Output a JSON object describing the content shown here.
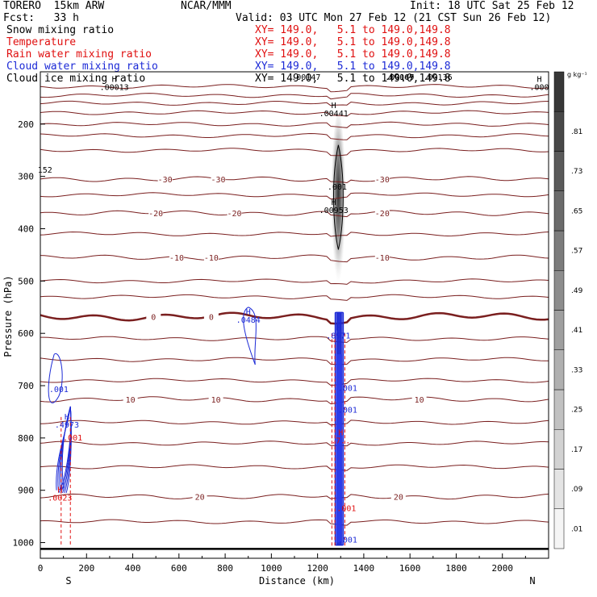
{
  "header": {
    "model": "TORERO  15km ARW",
    "org": "NCAR/MMM",
    "init": "Init: 18 UTC Sat 25 Feb 12",
    "fcst": "Fcst:   33 h",
    "valid": "Valid: 03 UTC Mon 27 Feb 12 (21 CST Sun 26 Feb 12)"
  },
  "fields": [
    {
      "name": "Snow mixing ratio",
      "xy": "XY= 149.0,   5.1 to 149.0,149.8",
      "color": "#000000"
    },
    {
      "name": "Temperature",
      "xy": "XY= 149.0,   5.1 to 149.0,149.8",
      "color": "#e01010"
    },
    {
      "name": "Rain water mixing ratio",
      "xy": "XY= 149.0,   5.1 to 149.0,149.8",
      "color": "#e01010"
    },
    {
      "name": "Cloud water mixing ratio",
      "xy": "XY= 149.0,   5.1 to 149.0,149.8",
      "color": "#1c2ad6"
    },
    {
      "name": "Cloud ice mixing ratio",
      "xy": "XY= 149.0,   5.1 to 149.0,149.8",
      "color": "#000000"
    }
  ],
  "chart_data": {
    "type": "cross-section",
    "xlabel": "Distance (km)",
    "ylabel": "Pressure (hPa)",
    "xlim": [
      0,
      2200
    ],
    "ylim": [
      1030,
      100
    ],
    "x_ticks": [
      0,
      200,
      400,
      600,
      800,
      1000,
      1200,
      1400,
      1600,
      1800,
      2000
    ],
    "y_ticks": [
      200,
      300,
      400,
      500,
      600,
      700,
      800,
      900,
      1000
    ],
    "left_end": "S",
    "right_end": "N",
    "colorbar": {
      "unit": "g kg⁻¹",
      "labels": [
        ".01",
        ".09",
        ".17",
        ".25",
        ".33",
        ".41",
        ".49",
        ".57",
        ".65",
        ".73",
        ".81"
      ]
    },
    "isotherms": [
      {
        "value": "-30",
        "p": 305,
        "labels": [
          {
            "x": 540,
            "text": "-30"
          },
          {
            "x": 770,
            "text": "-30"
          },
          {
            "x": 1480,
            "text": "-30"
          }
        ]
      },
      {
        "value": "-20",
        "p": 370,
        "labels": [
          {
            "x": 500,
            "text": "-20"
          },
          {
            "x": 840,
            "text": "-20"
          },
          {
            "x": 1480,
            "text": "-20"
          }
        ]
      },
      {
        "value": "-10",
        "p": 455,
        "labels": [
          {
            "x": 590,
            "text": "-10"
          },
          {
            "x": 740,
            "text": "-10"
          },
          {
            "x": 1480,
            "text": "-10"
          }
        ]
      },
      {
        "value": "0",
        "p": 568,
        "labels": [
          {
            "x": 490,
            "text": "0"
          },
          {
            "x": 740,
            "text": "0"
          }
        ]
      },
      {
        "value": "10",
        "p": 726,
        "labels": [
          {
            "x": 390,
            "text": "10"
          },
          {
            "x": 760,
            "text": "10"
          },
          {
            "x": 1640,
            "text": "10"
          }
        ]
      },
      {
        "value": "20",
        "p": 912,
        "labels": [
          {
            "x": 690,
            "text": "20"
          },
          {
            "x": 1550,
            "text": "20"
          }
        ]
      }
    ],
    "other_isotherm_levels": [
      128,
      145,
      160,
      178,
      200,
      222,
      250,
      335,
      410,
      500,
      530,
      610,
      650,
      690,
      770,
      810,
      855,
      960
    ],
    "extrema_labels": [
      {
        "x": 320,
        "p": 135,
        "h": "H",
        "value": ".00013",
        "color": "#000000"
      },
      {
        "x": 2160,
        "p": 135,
        "h": "H",
        "value": ".000",
        "color": "#000000"
      },
      {
        "x": 1270,
        "p": 185,
        "h": "H",
        "value": ".00441",
        "color": "#000000"
      },
      {
        "x": 1285,
        "p": 325,
        "h": "",
        "value": ".001",
        "color": "#000000"
      },
      {
        "x": 1270,
        "p": 370,
        "h": "H",
        "value": ".00953",
        "color": "#000000"
      },
      {
        "x": 20,
        "p": 293,
        "h": "",
        "value": "152",
        "color": "#000000"
      },
      {
        "x": 900,
        "p": 580,
        "h": "H",
        "value": ".0484",
        "color": "#1c2ad6"
      },
      {
        "x": 1290,
        "p": 610,
        "h": "H",
        "value": ".8971",
        "color": "#1c2ad6"
      },
      {
        "x": 80,
        "p": 712,
        "h": "",
        "value": ".001",
        "color": "#1c2ad6"
      },
      {
        "x": 115,
        "p": 780,
        "h": "H",
        "value": ".4973",
        "color": "#1c2ad6"
      },
      {
        "x": 1300,
        "p": 810,
        "h": "H",
        "value": ".7..",
        "color": "#e01010"
      },
      {
        "x": 1330,
        "p": 710,
        "h": "",
        "value": ".001",
        "color": "#1c2ad6"
      },
      {
        "x": 1330,
        "p": 752,
        "h": "",
        "value": ".001",
        "color": "#1c2ad6"
      },
      {
        "x": 1330,
        "p": 1000,
        "h": "",
        "value": ".001",
        "color": "#1c2ad6"
      },
      {
        "x": 1325,
        "p": 940,
        "h": "",
        "value": ".001",
        "color": "#e01010"
      },
      {
        "x": 85,
        "p": 920,
        "h": "H",
        "value": ".0023",
        "color": "#e01010"
      },
      {
        "x": 140,
        "p": 805,
        "h": "",
        "value": ".001",
        "color": "#e01010"
      }
    ],
    "top_overlap_labels": [
      {
        "x": 1150,
        "text": ".00147"
      },
      {
        "x": 1555,
        "text": ".00147"
      },
      {
        "x": 1720,
        "text": ".00136"
      },
      {
        "x": 1555,
        "text": ".00069"
      }
    ]
  }
}
